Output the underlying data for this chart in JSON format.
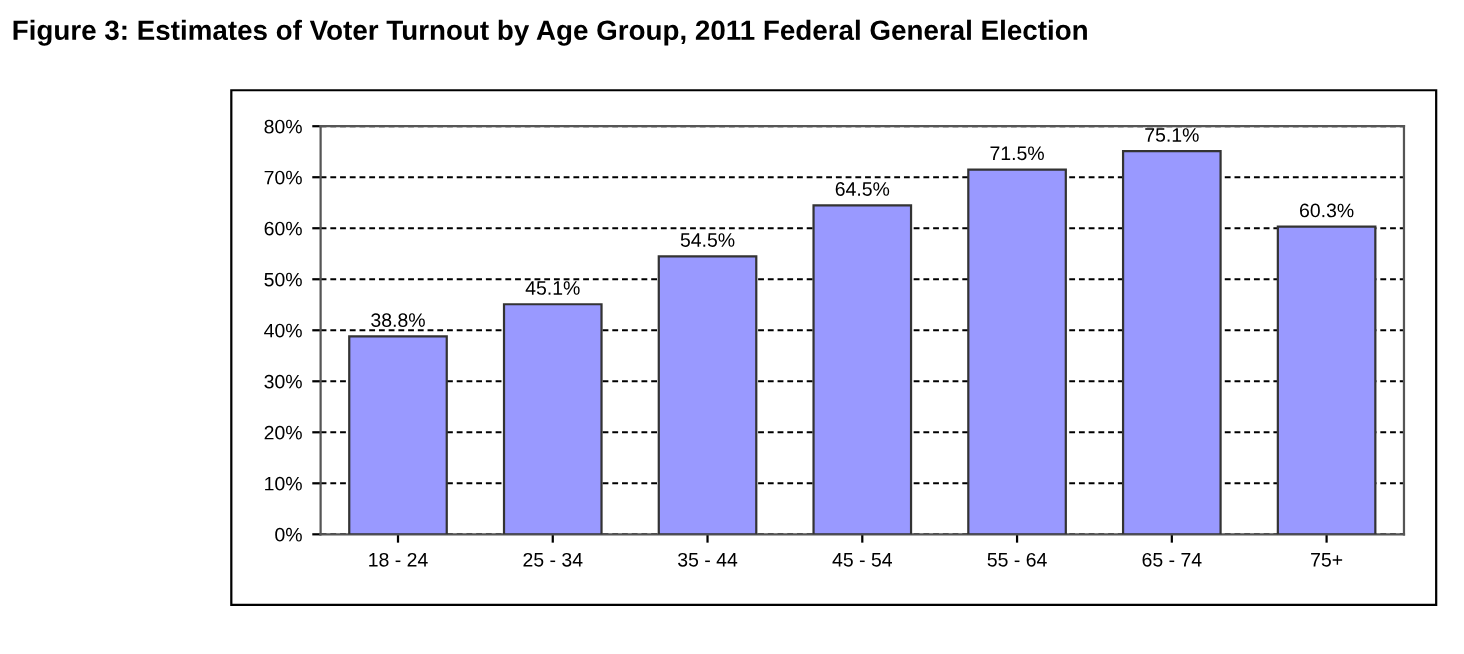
{
  "chart_data": {
    "type": "bar",
    "title": "Figure 3: Estimates of Voter Turnout by Age Group, 2011 Federal General Election",
    "categories": [
      "18 - 24",
      "25 - 34",
      "35 - 44",
      "45 - 54",
      "55 - 64",
      "65 - 74",
      "75+"
    ],
    "values": [
      38.8,
      45.1,
      54.5,
      64.5,
      71.5,
      75.1,
      60.3
    ],
    "value_labels": [
      "38.8%",
      "45.1%",
      "54.5%",
      "64.5%",
      "71.5%",
      "75.1%",
      "60.3%"
    ],
    "color": "#9999ff",
    "ylim": [
      0,
      80
    ],
    "yticks": [
      {
        "value": 0,
        "label": "0%"
      },
      {
        "value": 10,
        "label": "10%"
      },
      {
        "value": 20,
        "label": "20%"
      },
      {
        "value": 30,
        "label": "30%"
      },
      {
        "value": 40,
        "label": "40%"
      },
      {
        "value": 50,
        "label": "50%"
      },
      {
        "value": 60,
        "label": "60%"
      },
      {
        "value": 70,
        "label": "70%"
      },
      {
        "value": 80,
        "label": "80%"
      }
    ],
    "grid": "y",
    "legend": false
  }
}
